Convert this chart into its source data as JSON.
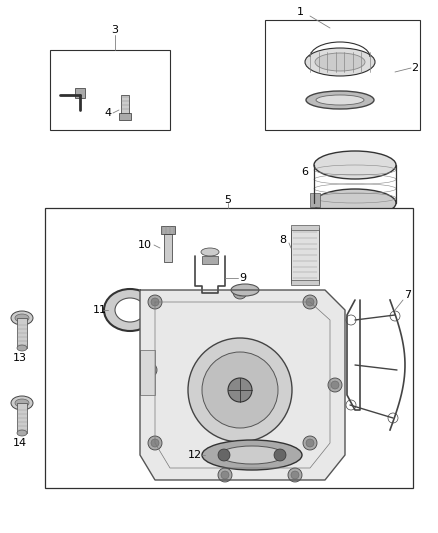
{
  "background_color": "#ffffff",
  "line_color": "#000000",
  "fig_width": 4.38,
  "fig_height": 5.33,
  "dpi": 100,
  "gray_part": "#505050",
  "gray_light": "#888888",
  "gray_mid": "#666666"
}
